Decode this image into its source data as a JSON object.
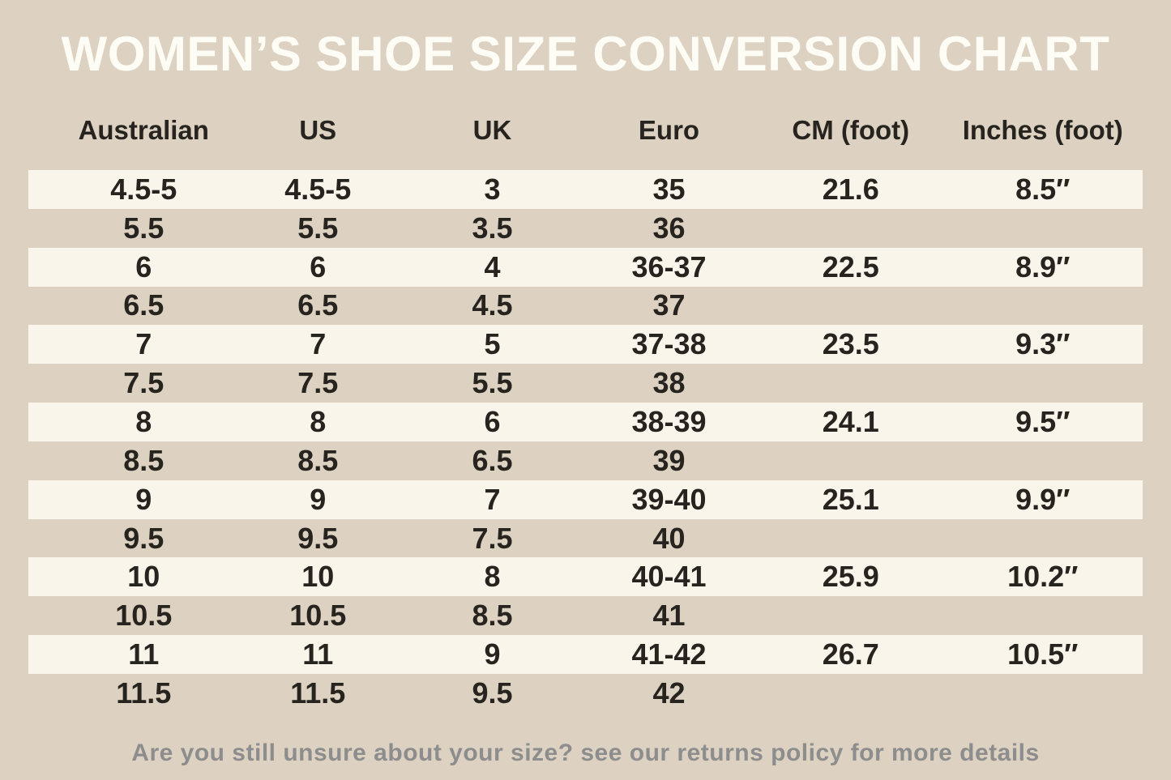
{
  "chart_data": {
    "type": "table",
    "title": "WOMEN’S SHOE SIZE CONVERSION CHART",
    "columns": [
      "Australian",
      "US",
      "UK",
      "Euro",
      "CM (foot)",
      "Inches (foot)"
    ],
    "rows": [
      [
        "4.5-5",
        "4.5-5",
        "3",
        "35",
        "21.6",
        "8.5″"
      ],
      [
        "5.5",
        "5.5",
        "3.5",
        "36",
        "",
        ""
      ],
      [
        "6",
        "6",
        "4",
        "36-37",
        "22.5",
        "8.9″"
      ],
      [
        "6.5",
        "6.5",
        "4.5",
        "37",
        "",
        ""
      ],
      [
        "7",
        "7",
        "5",
        "37-38",
        "23.5",
        "9.3″"
      ],
      [
        "7.5",
        "7.5",
        "5.5",
        "38",
        "",
        ""
      ],
      [
        "8",
        "8",
        "6",
        "38-39",
        "24.1",
        "9.5″"
      ],
      [
        "8.5",
        "8.5",
        "6.5",
        "39",
        "",
        ""
      ],
      [
        "9",
        "9",
        "7",
        "39-40",
        "25.1",
        "9.9″"
      ],
      [
        "9.5",
        "9.5",
        "7.5",
        "40",
        "",
        ""
      ],
      [
        "10",
        "10",
        "8",
        "40-41",
        "25.9",
        "10.2″"
      ],
      [
        "10.5",
        "10.5",
        "8.5",
        "41",
        "",
        ""
      ],
      [
        "11",
        "11",
        "9",
        "41-42",
        "26.7",
        "10.5″"
      ],
      [
        "11.5",
        "11.5",
        "9.5",
        "42",
        "",
        ""
      ]
    ],
    "footnote": "Are you still unsure about your size? see our returns policy for more details",
    "layout": {
      "stripe_rows": "odd rows (1st, 3rd, ...) have cream stripe background",
      "grid": "off"
    }
  },
  "colors": {
    "background": "#ddd2c2",
    "row_stripe": "#faf5eb",
    "header_text": "#272420",
    "cell_text": "#272420",
    "title_text": "#fdfcf5",
    "footnote_text": "#8d8d8d"
  }
}
